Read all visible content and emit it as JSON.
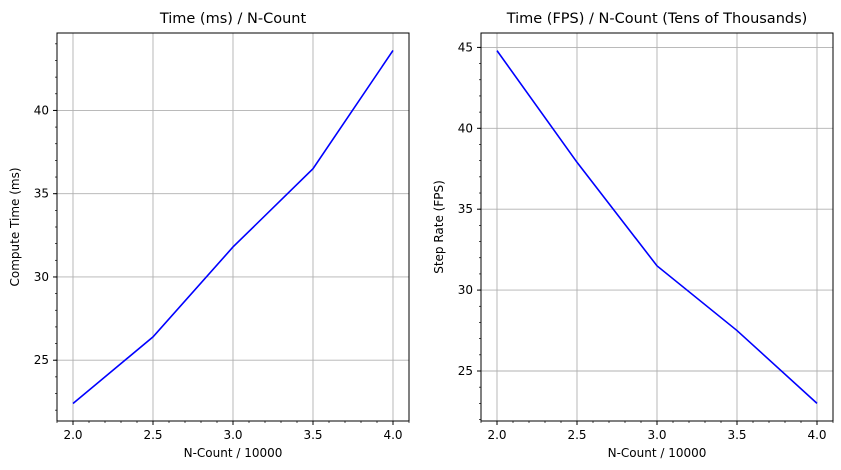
{
  "chart_data": [
    {
      "type": "line",
      "title": "Time (ms) / N-Count",
      "xlabel": "N-Count / 10000",
      "ylabel": "Compute Time (ms)",
      "x": [
        2.0,
        2.5,
        3.0,
        3.5,
        4.0
      ],
      "series": [
        {
          "values": [
            22.4,
            26.4,
            31.8,
            36.5,
            43.6
          ],
          "color": "#0000ff"
        }
      ],
      "xlim": [
        1.9,
        4.1
      ],
      "ylim": [
        21.35,
        44.65
      ],
      "xticks": [
        "2.0",
        "2.5",
        "3.0",
        "3.5",
        "4.0"
      ],
      "yticks": [
        "25",
        "30",
        "35",
        "40"
      ],
      "grid": true
    },
    {
      "type": "line",
      "title": "Time (FPS) / N-Count (Tens of Thousands)",
      "xlabel": "N-Count / 10000",
      "ylabel": "Step Rate (FPS)",
      "x": [
        2.0,
        2.5,
        3.0,
        3.5,
        4.0
      ],
      "series": [
        {
          "values": [
            44.8,
            37.9,
            31.5,
            27.5,
            23.0
          ],
          "color": "#0000ff"
        }
      ],
      "xlim": [
        1.9,
        4.1
      ],
      "ylim": [
        21.91,
        45.89
      ],
      "xticks": [
        "2.0",
        "2.5",
        "3.0",
        "3.5",
        "4.0"
      ],
      "yticks": [
        "25",
        "30",
        "35",
        "40",
        "45"
      ],
      "grid": true
    }
  ]
}
